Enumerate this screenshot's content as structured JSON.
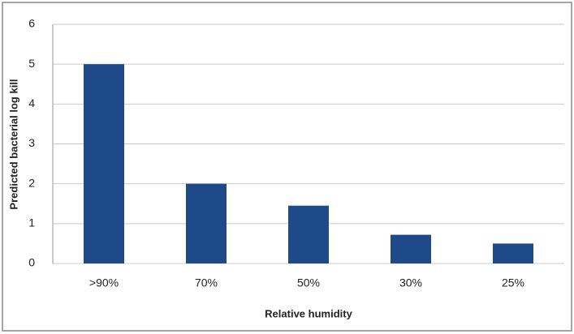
{
  "chart_data": {
    "type": "bar",
    "categories": [
      ">90%",
      "70%",
      "50%",
      "30%",
      "25%"
    ],
    "values": [
      5,
      2,
      1.45,
      0.72,
      0.5
    ],
    "color": "#1f4a8a",
    "xlabel": "Relative humidity",
    "ylabel": "Predicted bacterial log kill",
    "ylim": [
      0,
      6
    ],
    "yticks": [
      0,
      1,
      2,
      3,
      4,
      5,
      6
    ],
    "grid": true
  }
}
